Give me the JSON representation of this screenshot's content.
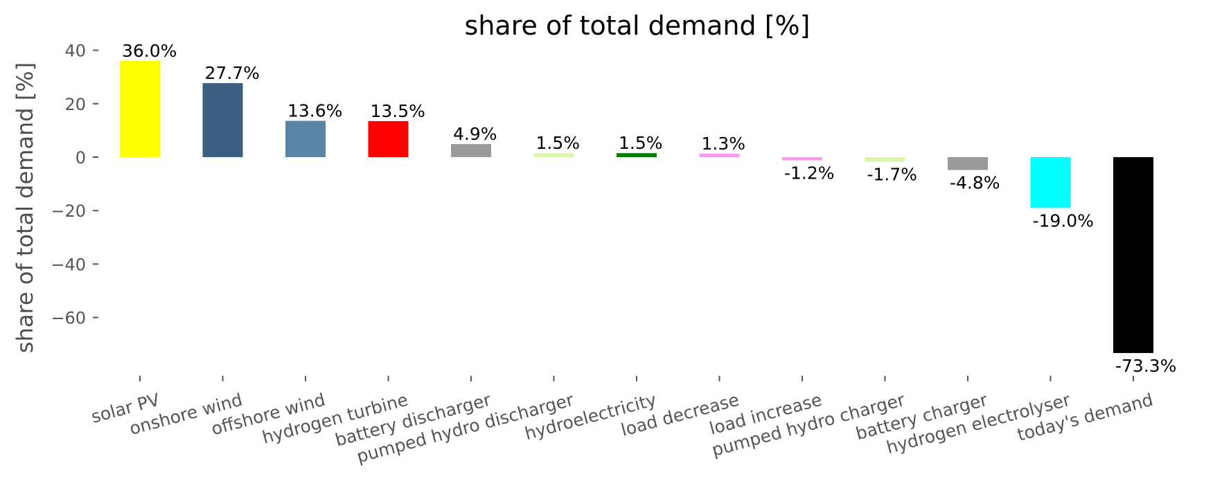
{
  "chart_data": {
    "type": "bar",
    "title": "share of total demand [%]",
    "xlabel": "",
    "ylabel": "share of total demand [%]",
    "ylim": [
      -80,
      40
    ],
    "yticks": [
      40,
      20,
      0,
      -20,
      -40,
      -60
    ],
    "ytick_labels": [
      "40",
      "20",
      "0",
      "−20",
      "−40",
      "−60"
    ],
    "grid": false,
    "legend": "none",
    "categories": [
      "solar PV",
      "onshore wind",
      "offshore wind",
      "hydrogen turbine",
      "battery discharger",
      "pumped hydro discharger",
      "hydroelectricity",
      "load decrease",
      "load increase",
      "pumped hydro charger",
      "battery charger",
      "hydrogen electrolyser",
      "today's demand"
    ],
    "values": [
      36.0,
      27.7,
      13.6,
      13.5,
      4.9,
      1.5,
      1.5,
      1.3,
      -1.2,
      -1.7,
      -4.8,
      -19.0,
      -73.3
    ],
    "value_labels": [
      "36.0%",
      "27.7%",
      "13.6%",
      "13.5%",
      "4.9%",
      "1.5%",
      "1.5%",
      "1.3%",
      "-1.2%",
      "-1.7%",
      "-4.8%",
      "-19.0%",
      "-73.3%"
    ],
    "colors": [
      "#ffff00",
      "#3b5f80",
      "#5b84a5",
      "#ff0000",
      "#999999",
      "#d9f5a8",
      "#008000",
      "#f49cf4",
      "#f49cf4",
      "#d9f5a8",
      "#999999",
      "#00ffff",
      "#000000"
    ]
  }
}
